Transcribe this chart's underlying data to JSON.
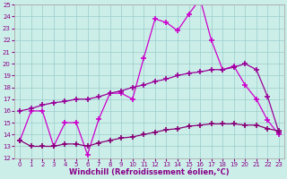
{
  "xlabel": "Windchill (Refroidissement éolien,°C)",
  "xlim": [
    -0.5,
    23.5
  ],
  "ylim": [
    12,
    25
  ],
  "xticks": [
    0,
    1,
    2,
    3,
    4,
    5,
    6,
    7,
    8,
    9,
    10,
    11,
    12,
    13,
    14,
    15,
    16,
    17,
    18,
    19,
    20,
    21,
    22,
    23
  ],
  "yticks": [
    12,
    13,
    14,
    15,
    16,
    17,
    18,
    19,
    20,
    21,
    22,
    23,
    24,
    25
  ],
  "background_color": "#cceee8",
  "line1_color": "#cc00cc",
  "line2_color": "#990099",
  "line3_color": "#880077",
  "line1_x": [
    0,
    1,
    2,
    3,
    4,
    5,
    6,
    7,
    8,
    9,
    10,
    11,
    12,
    13,
    14,
    15,
    16,
    17,
    18,
    19,
    20,
    21,
    22,
    23
  ],
  "line1_y": [
    13.5,
    16.0,
    16.0,
    13.0,
    15.0,
    15.0,
    12.3,
    15.3,
    17.5,
    17.5,
    17.0,
    20.5,
    23.8,
    23.5,
    22.8,
    24.2,
    25.5,
    22.0,
    19.5,
    19.8,
    18.2,
    17.0,
    15.2,
    14.0
  ],
  "line2_x": [
    0,
    1,
    2,
    3,
    4,
    5,
    6,
    7,
    8,
    9,
    10,
    11,
    12,
    13,
    14,
    15,
    16,
    17,
    18,
    19,
    20,
    21,
    22,
    23
  ],
  "line2_y": [
    16.0,
    16.2,
    16.5,
    16.7,
    16.8,
    17.0,
    17.0,
    17.2,
    17.5,
    17.7,
    18.0,
    18.2,
    18.5,
    18.7,
    19.0,
    19.2,
    19.3,
    19.5,
    19.5,
    19.7,
    20.0,
    19.5,
    17.2,
    14.2
  ],
  "line3_x": [
    0,
    1,
    2,
    3,
    4,
    5,
    6,
    7,
    8,
    9,
    10,
    11,
    12,
    13,
    14,
    15,
    16,
    17,
    18,
    19,
    20,
    21,
    22,
    23
  ],
  "line3_y": [
    13.5,
    13.0,
    13.0,
    13.0,
    13.2,
    13.2,
    13.0,
    13.3,
    13.5,
    13.7,
    13.8,
    14.0,
    14.2,
    14.4,
    14.5,
    14.7,
    14.8,
    14.9,
    14.9,
    14.9,
    14.8,
    14.8,
    14.5,
    14.3
  ],
  "marker": "+",
  "markersize": 4,
  "markeredgewidth": 1.2,
  "linewidth": 0.9,
  "tick_fontsize": 5.0,
  "label_fontsize": 6.0,
  "grid_color": "#99cccc",
  "grid_linewidth": 0.5
}
